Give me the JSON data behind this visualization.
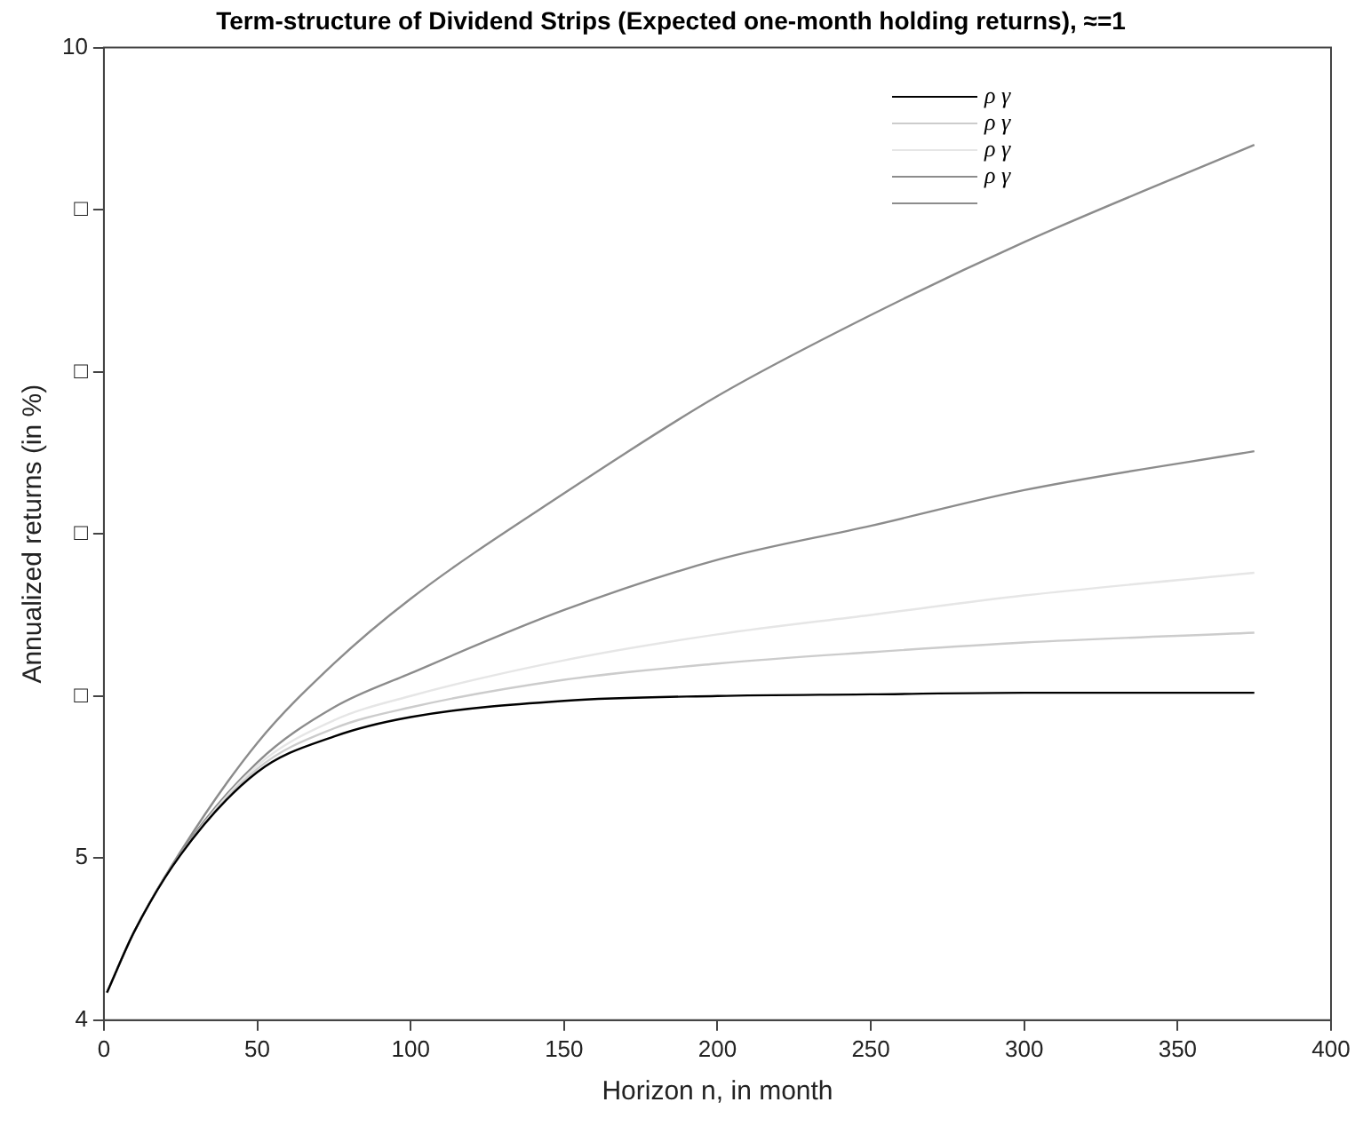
{
  "chart_data": {
    "type": "line",
    "title": "Term-structure of Dividend Strips (Expected one-month holding returns), ≈=1",
    "xlabel": "Horizon n, in month",
    "ylabel": "Annualized returns (in %)",
    "xlim": [
      0,
      400
    ],
    "xticks": [
      0,
      50,
      100,
      150,
      200,
      250,
      300,
      350,
      400
    ],
    "ylim": [
      4,
      10
    ],
    "yticks": [
      4,
      5,
      {
        "value": 6,
        "label": "□"
      },
      {
        "value": 7,
        "label": "□"
      },
      {
        "value": 8,
        "label": "□"
      },
      {
        "value": 9,
        "label": "□"
      },
      10
    ],
    "x": [
      1,
      10,
      25,
      50,
      75,
      100,
      150,
      200,
      250,
      300,
      375
    ],
    "series": [
      {
        "name": "ρ γ",
        "color": "#000000",
        "values": [
          4.17,
          4.55,
          5.02,
          5.53,
          5.75,
          5.87,
          5.97,
          6.0,
          6.01,
          6.02,
          6.02
        ]
      },
      {
        "name": "ρ γ",
        "color": "#cccccc",
        "values": [
          4.17,
          4.55,
          5.02,
          5.55,
          5.8,
          5.93,
          6.1,
          6.2,
          6.27,
          6.33,
          6.39
        ]
      },
      {
        "name": "ρ γ",
        "color": "#e6e6e6",
        "values": [
          4.17,
          4.55,
          5.02,
          5.57,
          5.85,
          6.0,
          6.22,
          6.38,
          6.5,
          6.62,
          6.76
        ]
      },
      {
        "name": "ρ γ",
        "color": "#8c8c8c",
        "values": [
          4.17,
          4.55,
          5.03,
          5.59,
          5.93,
          6.14,
          6.53,
          6.84,
          7.05,
          7.27,
          7.51
        ]
      },
      {
        "color": "#8c8c8c",
        "values": [
          4.17,
          4.55,
          5.04,
          5.71,
          6.2,
          6.6,
          7.25,
          7.85,
          8.35,
          8.8,
          9.4
        ]
      }
    ],
    "legend": "top right",
    "grid": false,
    "marker": "none",
    "line_style": "solid"
  }
}
